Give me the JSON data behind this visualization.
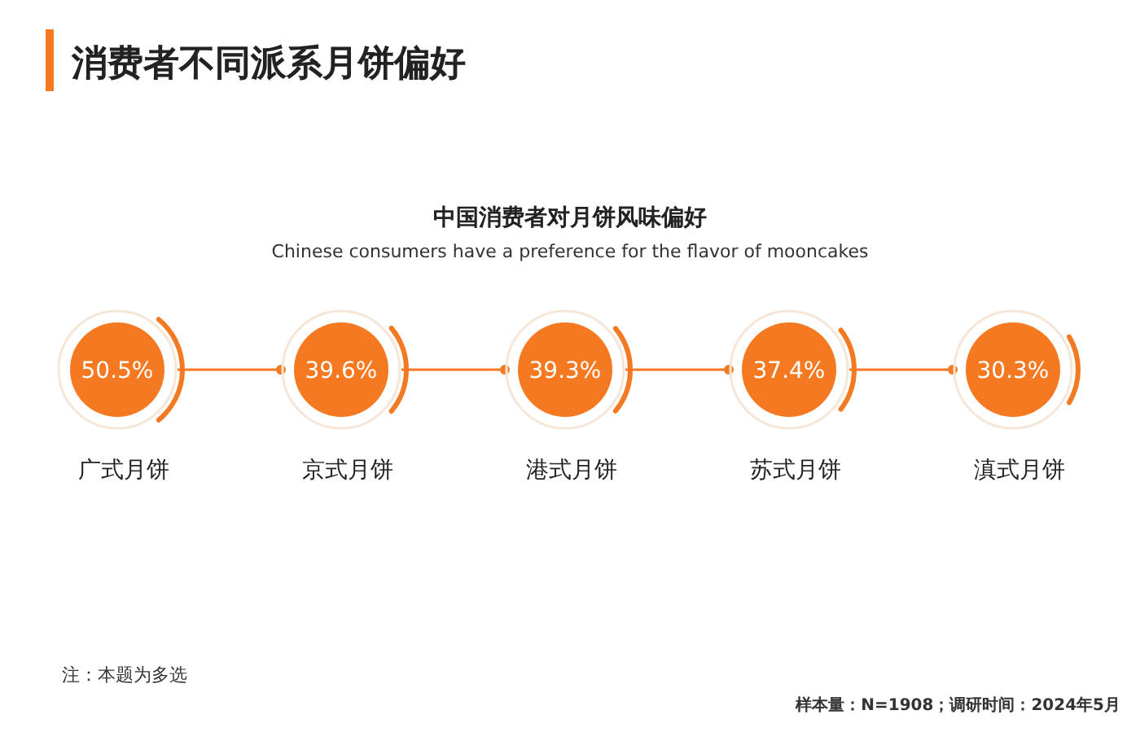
{
  "chart_data": {
    "type": "other",
    "title": "消费者不同派系月饼偏好",
    "subtitle": "中国消费者对月饼风味偏好",
    "categories": [
      "广式月饼",
      "京式月饼",
      "港式月饼",
      "苏式月饼",
      "滇式月饼"
    ],
    "values": [
      50.5,
      39.6,
      39.3,
      37.4,
      30.3
    ],
    "value_labels": [
      "50.5%",
      "39.6%",
      "39.3%",
      "37.4%",
      "30.3%"
    ],
    "color": "#f47920",
    "annotations": [
      "Chinese consumers have a preference for the flavor of mooncakes",
      "注：本题为多选",
      "样本量：N=1908；调研时间：2024年5月"
    ]
  }
}
